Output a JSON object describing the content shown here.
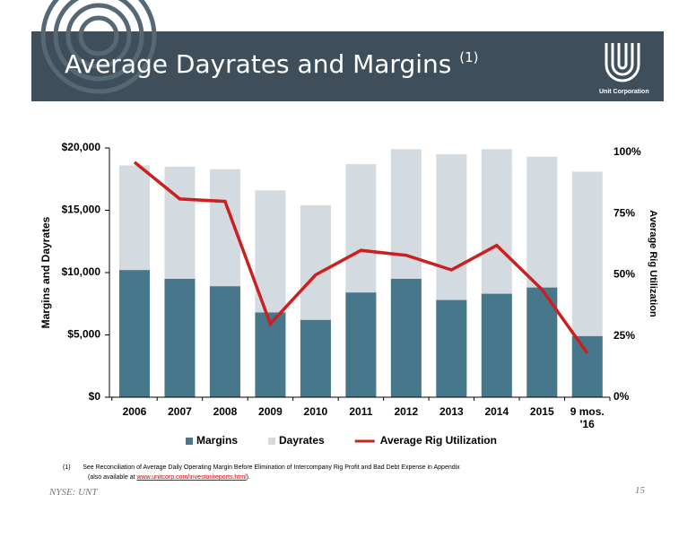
{
  "header": {
    "title": "Average Dayrates and Margins",
    "title_note": "(1)",
    "logo_text": "Unit Corporation"
  },
  "chart_data": {
    "type": "bar",
    "overlap": true,
    "categories": [
      "2006",
      "2007",
      "2008",
      "2009",
      "2010",
      "2011",
      "2012",
      "2013",
      "2014",
      "2015",
      "9 mos.\n'16"
    ],
    "series": [
      {
        "name": "Dayrates",
        "color": "#d3dbe1",
        "values": [
          18600,
          18500,
          18300,
          16600,
          15400,
          18700,
          19900,
          19500,
          19900,
          19300,
          18100
        ]
      },
      {
        "name": "Margins",
        "color": "#46778a",
        "values": [
          10200,
          9500,
          8900,
          6800,
          6200,
          8400,
          9500,
          7800,
          8300,
          8800,
          4900
        ]
      },
      {
        "name": "Average Rig Utilization",
        "color": "#cc1f1f",
        "type": "line",
        "axis": "y2",
        "values": [
          96,
          81,
          80,
          30,
          50,
          60,
          58,
          52,
          62,
          44,
          18
        ]
      }
    ],
    "legend_order": [
      1,
      0,
      2
    ],
    "ylabel": "Margins and Dayrates",
    "y2label": "Average Rig Utilization",
    "ylim": [
      0,
      20000
    ],
    "yticks": [
      {
        "value": 0,
        "label": "$0"
      },
      {
        "value": 5000,
        "label": "$5,000"
      },
      {
        "value": 10000,
        "label": "$10,000"
      },
      {
        "value": 15000,
        "label": "$15,000"
      },
      {
        "value": 20000,
        "label": "$20,000"
      }
    ],
    "y2lim": [
      0,
      100
    ],
    "y2ticks": [
      {
        "value": 0,
        "label": "0%"
      },
      {
        "value": 25,
        "label": "25%"
      },
      {
        "value": 50,
        "label": "50%"
      },
      {
        "value": 75,
        "label": "75%"
      },
      {
        "value": 100,
        "label": "100%"
      }
    ]
  },
  "footnote": {
    "marker": "(1)",
    "text": "See Reconciliation of Average Daily Operating Margin Before Elimination of Intercompany Rig Profit and Bad Debt Expense in Appendix",
    "text2": "(also available at ",
    "link": "www.unitcorp.com/investor/reports.html",
    "text3": ")."
  },
  "footer": {
    "left": "NYSE: UNT",
    "page": "15"
  }
}
